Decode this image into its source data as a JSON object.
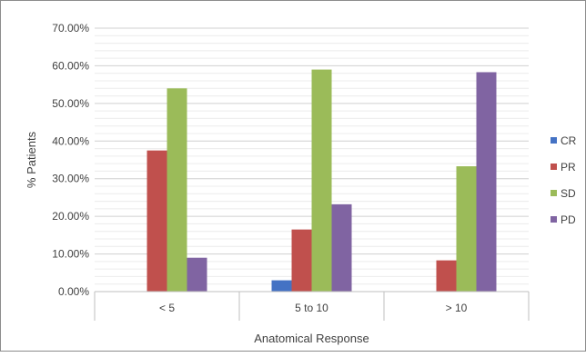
{
  "chart_data": {
    "type": "bar",
    "title": "",
    "xlabel": "Anatomical Response",
    "ylabel": "% Patients",
    "categories": [
      "< 5",
      "5 to 10",
      "> 10"
    ],
    "yticks": [
      "0.00%",
      "10.00%",
      "20.00%",
      "30.00%",
      "40.00%",
      "50.00%",
      "60.00%",
      "70.00%"
    ],
    "ylim": [
      0,
      70
    ],
    "grid": true,
    "legend_position": "right",
    "series": [
      {
        "name": "CR",
        "color": "#4472c4",
        "values": [
          0,
          3.0,
          0
        ]
      },
      {
        "name": "PR",
        "color": "#c0504d",
        "values": [
          37.5,
          16.5,
          8.3
        ]
      },
      {
        "name": "SD",
        "color": "#9bbb59",
        "values": [
          54.0,
          59.0,
          33.3
        ]
      },
      {
        "name": "PD",
        "color": "#8064a2",
        "values": [
          9.0,
          23.2,
          58.3
        ]
      }
    ]
  }
}
